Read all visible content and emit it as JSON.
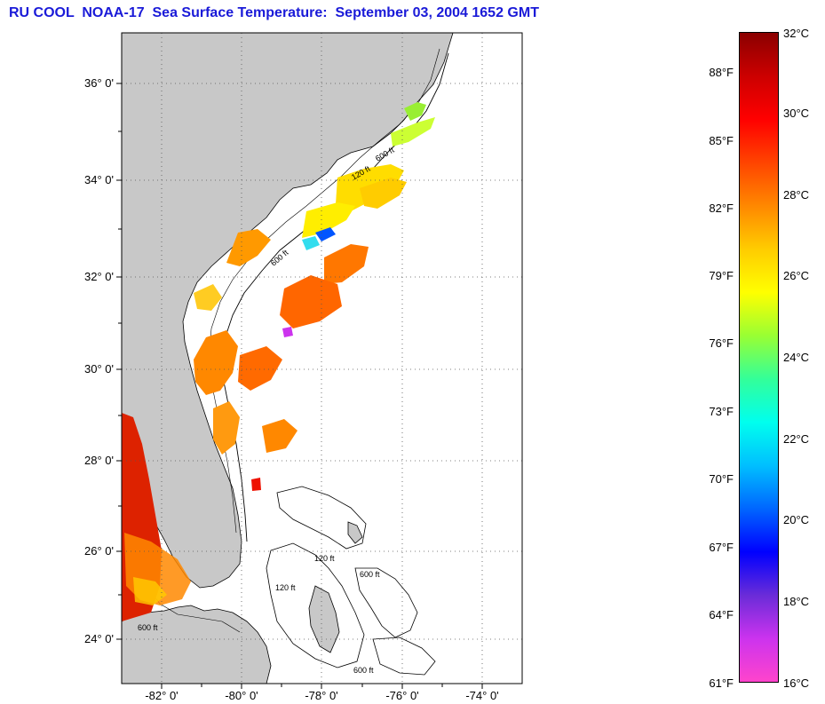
{
  "title": "RU COOL  NOAA-17  Sea Surface Temperature:  September 03, 2004 1652 GMT",
  "map": {
    "lat_labels": [
      "36° 0'",
      "34° 0'",
      "32° 0'",
      "30° 0'",
      "28° 0'",
      "26° 0'",
      "24° 0'"
    ],
    "lon_labels": [
      "-82° 0'",
      "-80° 0'",
      "-78° 0'",
      "-76° 0'",
      "-74° 0'"
    ],
    "land_color": "#c8c8c8",
    "ocean_color": "#ffffff",
    "contour_labels": [
      "120 ft",
      "600 ft",
      "600 ft",
      "120 ft",
      "600 ft",
      "120 ft",
      "600 ft",
      "600 ft"
    ],
    "region": {
      "lon_min": -83,
      "lon_max": -73,
      "lat_min": 23,
      "lat_max": 37
    }
  },
  "colorbar": {
    "celsius_labels": [
      "32°C",
      "30°C",
      "28°C",
      "26°C",
      "24°C",
      "22°C",
      "20°C",
      "18°C",
      "16°C"
    ],
    "fahrenheit_labels": [
      "88°F",
      "85°F",
      "82°F",
      "79°F",
      "76°F",
      "73°F",
      "70°F",
      "67°F",
      "64°F",
      "61°F"
    ],
    "range_c": [
      16,
      32
    ],
    "colors": [
      "#ff44cc",
      "#cc33ee",
      "#6a2cd8",
      "#0000ff",
      "#0066ff",
      "#00bfff",
      "#00ffee",
      "#33ff99",
      "#99ff33",
      "#ffff00",
      "#ffcc00",
      "#ff8800",
      "#ff4400",
      "#ff0000",
      "#cc0000",
      "#8b0000"
    ]
  }
}
